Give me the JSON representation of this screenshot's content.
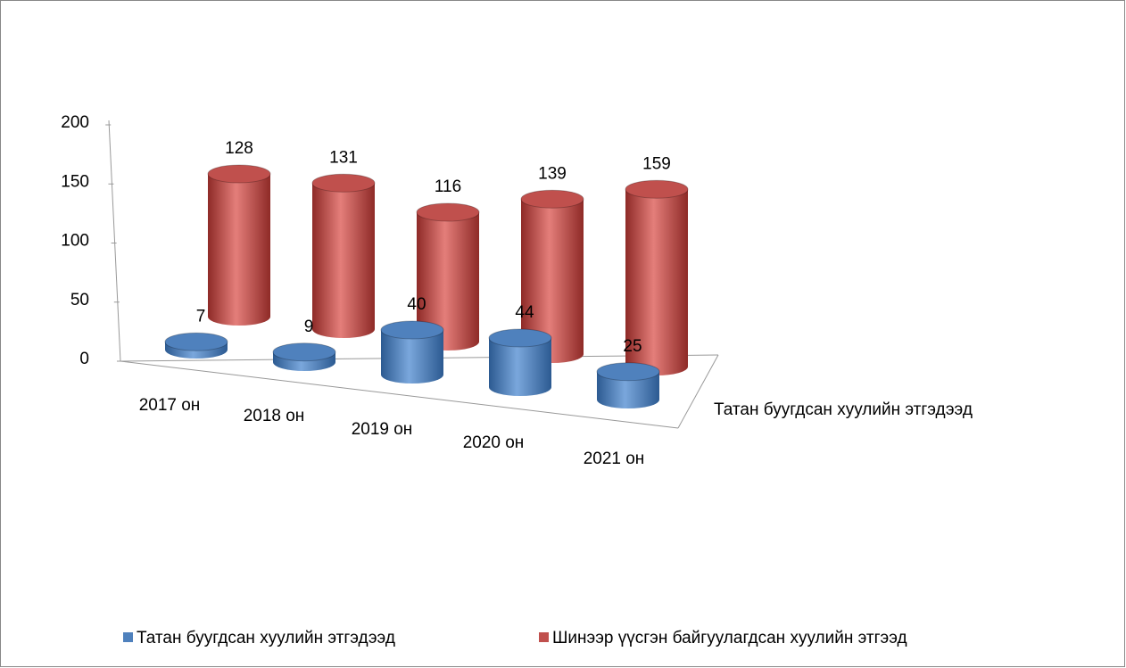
{
  "chart_data": {
    "type": "bar",
    "shape": "cylinder",
    "categories": [
      "2017 он",
      "2018 он",
      "2019 он",
      "2020 он",
      "2021 он"
    ],
    "series": [
      {
        "name": "Татан буугдсан хуулийн этгэдээд",
        "color": "#4f81bd",
        "values": [
          7,
          9,
          40,
          44,
          25
        ]
      },
      {
        "name": "Шинээр үүсгэн байгуулагдсан хуулийн этгээд",
        "color": "#c0504d",
        "values": [
          128,
          131,
          116,
          139,
          159
        ]
      }
    ],
    "ylim": [
      0,
      200
    ],
    "yticks": [
      0,
      50,
      100,
      150,
      200
    ],
    "legend": "bottom"
  }
}
